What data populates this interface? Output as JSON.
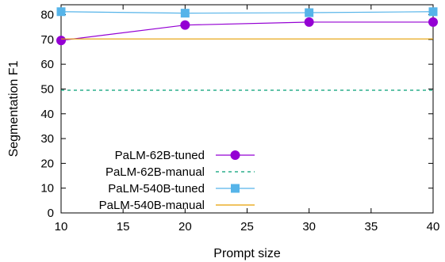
{
  "chart_data": {
    "type": "line",
    "xlabel": "Prompt size",
    "ylabel": "Segmentation F1",
    "xlim": [
      10,
      40
    ],
    "ylim": [
      0,
      84
    ],
    "xticks": [
      10,
      15,
      20,
      25,
      30,
      35,
      40
    ],
    "yticks": [
      0,
      10,
      20,
      30,
      40,
      50,
      60,
      70,
      80
    ],
    "grid": false,
    "legend_position": "bottom-left",
    "series": [
      {
        "name": "PaLM-62B-tuned",
        "style": "line-circles",
        "color": "#9400d3",
        "x": [
          10,
          20,
          30,
          40
        ],
        "y": [
          69.6,
          75.8,
          77.0,
          77.0
        ]
      },
      {
        "name": "PaLM-62B-manual",
        "style": "dashed",
        "color": "#009e73",
        "x": [
          10,
          40
        ],
        "y": [
          49.5,
          49.5
        ]
      },
      {
        "name": "PaLM-540B-tuned",
        "style": "line-squares",
        "color": "#56b4e9",
        "x": [
          10,
          20,
          30,
          40
        ],
        "y": [
          81.2,
          80.6,
          80.8,
          81.2
        ]
      },
      {
        "name": "PaLM-540B-manual",
        "style": "solid",
        "color": "#e69f00",
        "x": [
          10,
          40
        ],
        "y": [
          70.2,
          70.2
        ]
      }
    ]
  }
}
